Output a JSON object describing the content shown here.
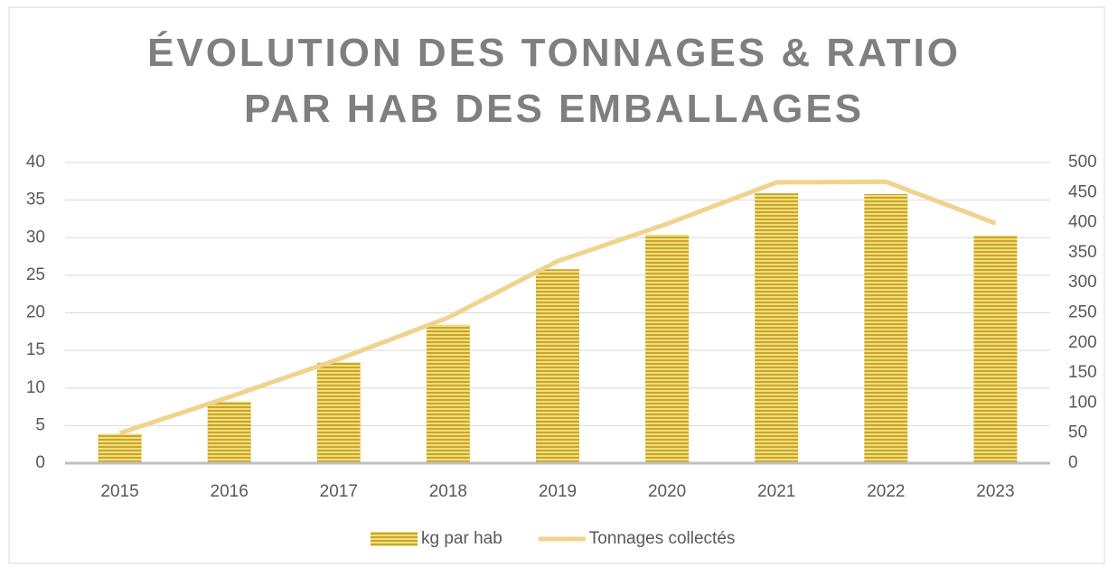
{
  "chart_data": {
    "type": "bar-line",
    "title": "ÉVOLUTION DES TONNAGES & RATIO PAR HAB DES EMBALLAGES",
    "categories": [
      "2015",
      "2016",
      "2017",
      "2018",
      "2019",
      "2020",
      "2021",
      "2022",
      "2023"
    ],
    "series": [
      {
        "name": "kg par hab",
        "type": "bar",
        "color": "#d9b83c",
        "values": [
          3.9,
          8.2,
          13.4,
          18.4,
          25.8,
          30.4,
          35.9,
          35.8,
          30.3
        ]
      },
      {
        "name": "Tonnages collectés",
        "type": "line",
        "axis": "y2",
        "color": "#efd38e",
        "values": [
          50,
          110,
          173,
          242,
          336,
          398,
          467,
          468,
          399
        ]
      }
    ],
    "ylim": [
      0,
      40
    ],
    "yticks": [
      0,
      5,
      10,
      15,
      20,
      25,
      30,
      35,
      40
    ],
    "y2lim": [
      0,
      500
    ],
    "y2ticks": [
      0,
      50,
      100,
      150,
      200,
      250,
      300,
      350,
      400,
      450,
      500
    ],
    "grid": true,
    "legend": "bottom"
  }
}
